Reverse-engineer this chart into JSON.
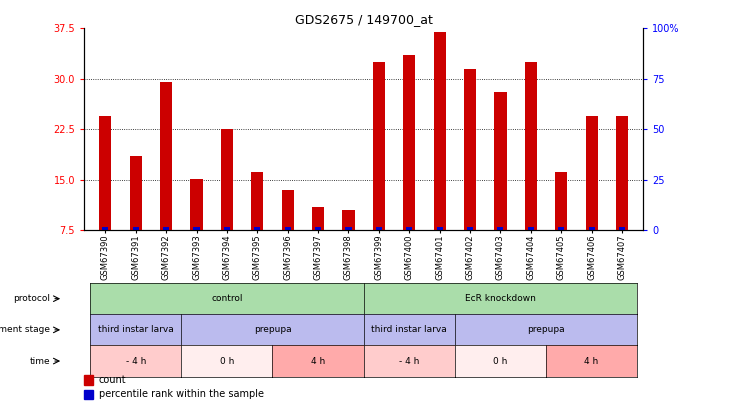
{
  "title": "GDS2675 / 149700_at",
  "samples": [
    "GSM67390",
    "GSM67391",
    "GSM67392",
    "GSM67393",
    "GSM67394",
    "GSM67395",
    "GSM67396",
    "GSM67397",
    "GSM67398",
    "GSM67399",
    "GSM67400",
    "GSM67401",
    "GSM67402",
    "GSM67403",
    "GSM67404",
    "GSM67405",
    "GSM67406",
    "GSM67407"
  ],
  "counts": [
    24.5,
    18.5,
    29.5,
    15.2,
    22.5,
    16.2,
    13.5,
    11.0,
    10.5,
    32.5,
    33.5,
    37.0,
    31.5,
    28.0,
    32.5,
    16.2,
    24.5,
    24.5
  ],
  "ylim_left": [
    7.5,
    37.5
  ],
  "ylim_right": [
    0,
    100
  ],
  "yticks_left": [
    7.5,
    15.0,
    22.5,
    30.0,
    37.5
  ],
  "yticks_right": [
    0,
    25,
    50,
    75,
    100
  ],
  "bar_color": "#cc0000",
  "percentile_color": "#0000cc",
  "protocol_row": {
    "label": "protocol",
    "groups": [
      {
        "text": "control",
        "start": 0,
        "end": 9,
        "color": "#aaddaa"
      },
      {
        "text": "EcR knockdown",
        "start": 9,
        "end": 18,
        "color": "#aaddaa"
      }
    ]
  },
  "dev_stage_row": {
    "label": "development stage",
    "groups": [
      {
        "text": "third instar larva",
        "start": 0,
        "end": 3,
        "color": "#bbbbee"
      },
      {
        "text": "prepupa",
        "start": 3,
        "end": 9,
        "color": "#bbbbee"
      },
      {
        "text": "third instar larva",
        "start": 9,
        "end": 12,
        "color": "#bbbbee"
      },
      {
        "text": "prepupa",
        "start": 12,
        "end": 18,
        "color": "#bbbbee"
      }
    ]
  },
  "time_row": {
    "label": "time",
    "groups": [
      {
        "text": "- 4 h",
        "start": 0,
        "end": 3,
        "color": "#ffcccc"
      },
      {
        "text": "0 h",
        "start": 3,
        "end": 6,
        "color": "#ffeeee"
      },
      {
        "text": "4 h",
        "start": 6,
        "end": 9,
        "color": "#ffaaaa"
      },
      {
        "text": "- 4 h",
        "start": 9,
        "end": 12,
        "color": "#ffcccc"
      },
      {
        "text": "0 h",
        "start": 12,
        "end": 15,
        "color": "#ffeeee"
      },
      {
        "text": "4 h",
        "start": 15,
        "end": 18,
        "color": "#ffaaaa"
      }
    ]
  },
  "legend": [
    {
      "label": "count",
      "color": "#cc0000"
    },
    {
      "label": "percentile rank within the sample",
      "color": "#0000cc"
    }
  ]
}
